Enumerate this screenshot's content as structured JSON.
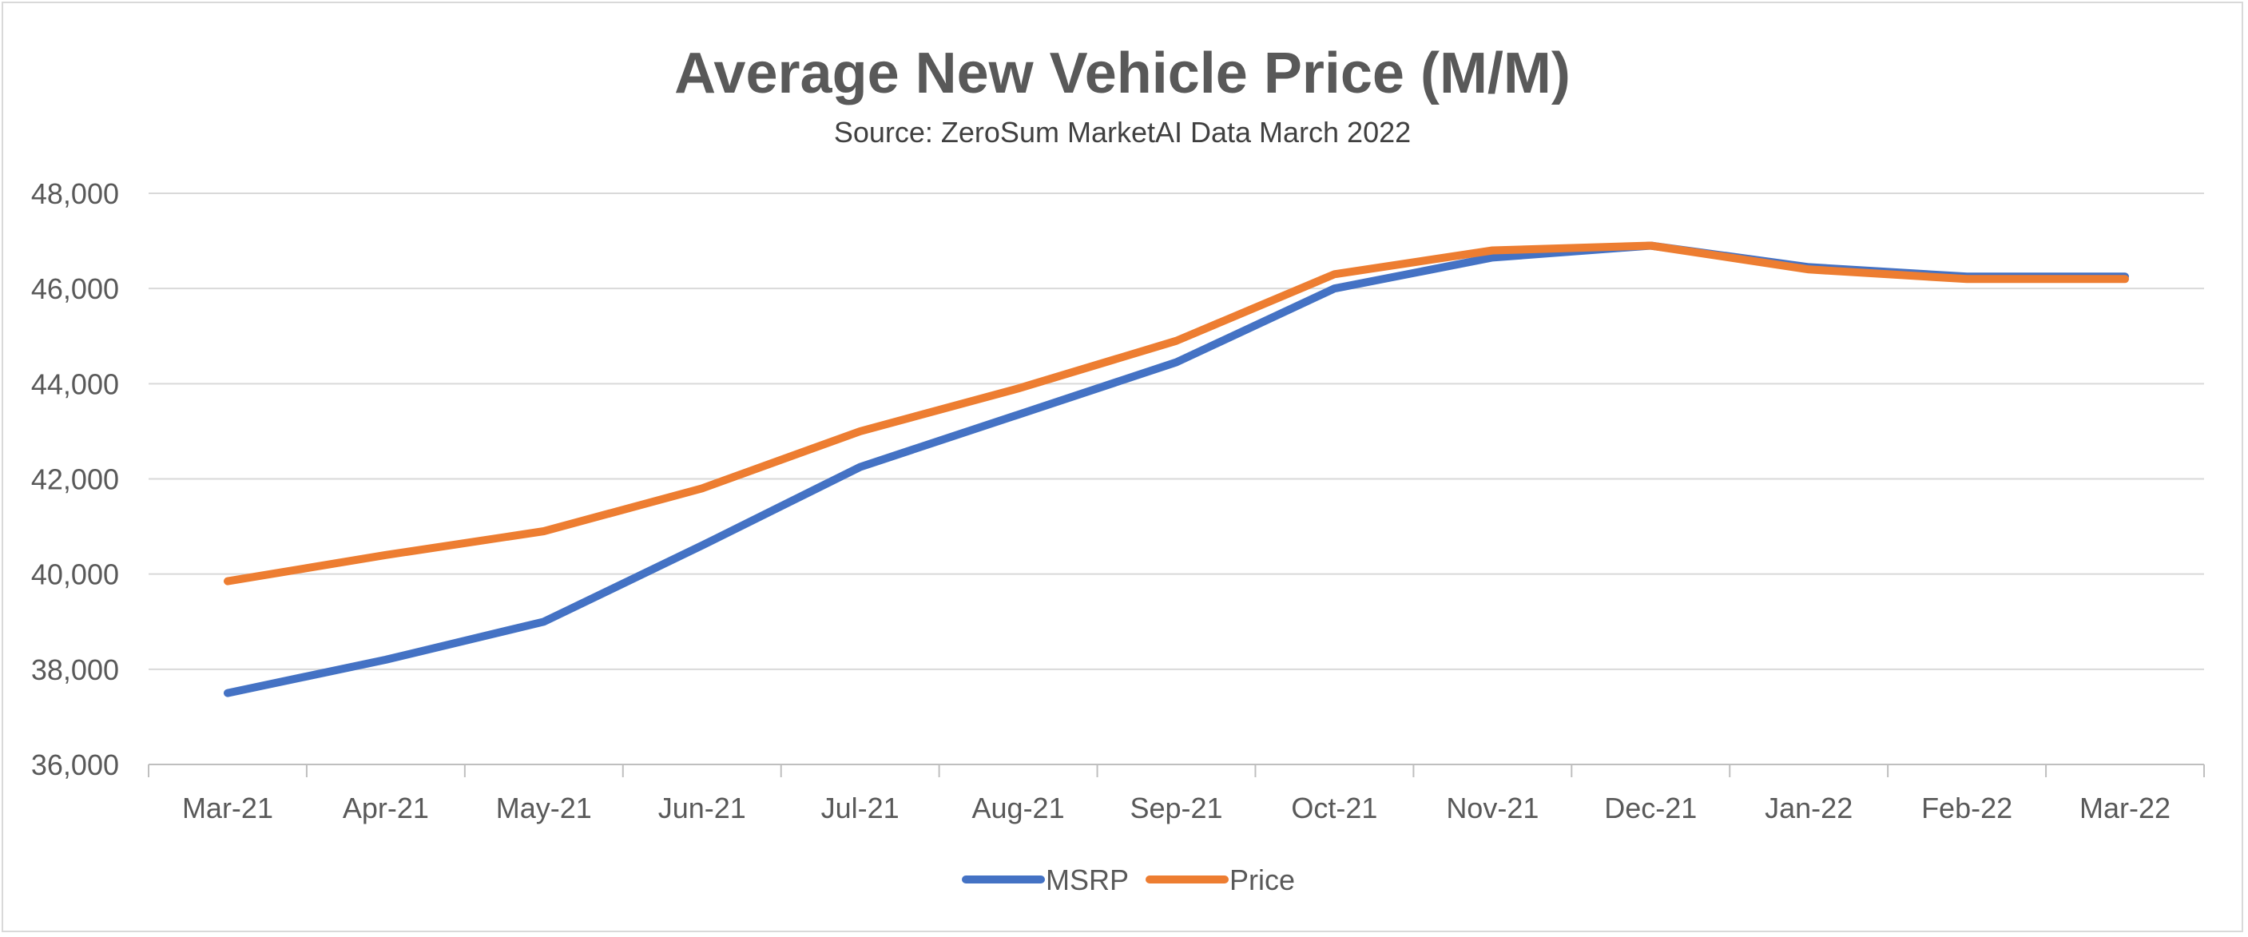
{
  "chart_data": {
    "type": "line",
    "title": "Average New Vehicle Price (M/M)",
    "subtitle": "Source: ZeroSum MarketAI Data March 2022",
    "xlabel": "",
    "ylabel": "",
    "categories": [
      "Mar-21",
      "Apr-21",
      "May-21",
      "Jun-21",
      "Jul-21",
      "Aug-21",
      "Sep-21",
      "Oct-21",
      "Nov-21",
      "Dec-21",
      "Jan-22",
      "Feb-22",
      "Mar-22"
    ],
    "ylim": [
      36000,
      48000
    ],
    "yticks": [
      36000,
      38000,
      40000,
      42000,
      44000,
      46000,
      48000
    ],
    "ytick_labels": [
      "36,000",
      "38,000",
      "40,000",
      "42,000",
      "44,000",
      "46,000",
      "48,000"
    ],
    "grid": true,
    "legend_position": "bottom",
    "series": [
      {
        "name": "MSRP",
        "color": "#4472c4",
        "values": [
          37500,
          38200,
          39000,
          40600,
          42250,
          43350,
          44450,
          46000,
          46650,
          46900,
          46450,
          46250,
          46250
        ]
      },
      {
        "name": "Price",
        "color": "#ed7d31",
        "values": [
          39850,
          40400,
          40900,
          41800,
          43000,
          43900,
          44900,
          46300,
          46800,
          46900,
          46400,
          46200,
          46200
        ]
      }
    ]
  }
}
